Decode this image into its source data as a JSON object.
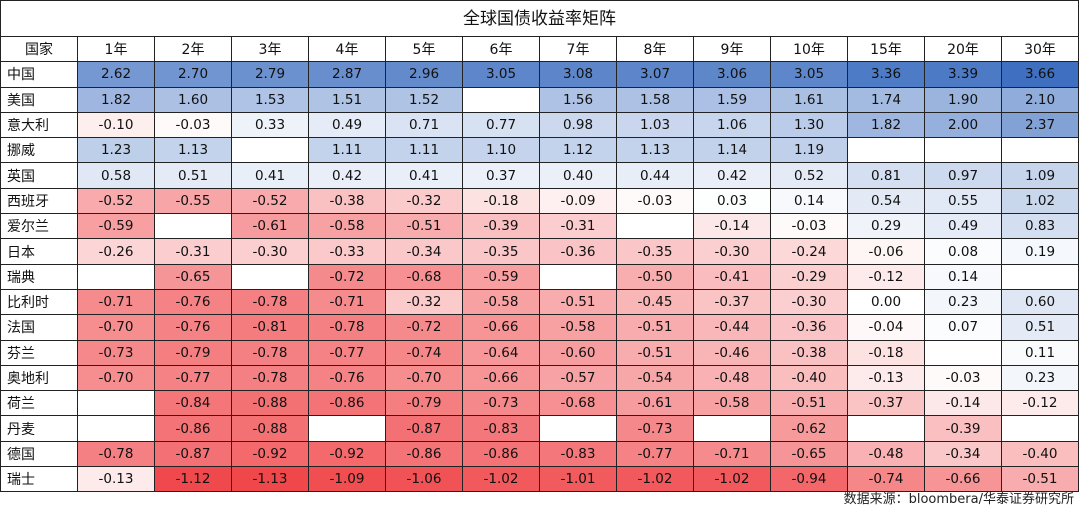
{
  "chart_data": {
    "type": "heatmap",
    "title": "全球国债收益率矩阵",
    "source": "数据来源：bloombera/华泰证券研究所",
    "corner_label": "国家",
    "columns": [
      "1年",
      "2年",
      "3年",
      "4年",
      "5年",
      "6年",
      "7年",
      "8年",
      "9年",
      "10年",
      "15年",
      "20年",
      "30年"
    ],
    "rows": [
      {
        "country": "中国",
        "values": [
          2.62,
          2.7,
          2.79,
          2.87,
          2.96,
          3.05,
          3.08,
          3.07,
          3.06,
          3.05,
          3.36,
          3.39,
          3.66
        ]
      },
      {
        "country": "美国",
        "values": [
          1.82,
          1.6,
          1.53,
          1.51,
          1.52,
          null,
          1.56,
          1.58,
          1.59,
          1.61,
          1.74,
          1.9,
          2.1
        ]
      },
      {
        "country": "意大利",
        "values": [
          -0.1,
          -0.03,
          0.33,
          0.49,
          0.71,
          0.77,
          0.98,
          1.03,
          1.06,
          1.3,
          1.82,
          2.0,
          2.37
        ]
      },
      {
        "country": "挪威",
        "values": [
          1.23,
          1.13,
          null,
          1.11,
          1.11,
          1.1,
          1.12,
          1.13,
          1.14,
          1.19,
          null,
          null,
          null
        ]
      },
      {
        "country": "英国",
        "values": [
          0.58,
          0.51,
          0.41,
          0.42,
          0.41,
          0.37,
          0.4,
          0.44,
          0.42,
          0.52,
          0.81,
          0.97,
          1.09
        ]
      },
      {
        "country": "西班牙",
        "values": [
          -0.52,
          -0.55,
          -0.52,
          -0.38,
          -0.32,
          -0.18,
          -0.09,
          -0.03,
          0.03,
          0.14,
          0.54,
          0.55,
          1.02
        ]
      },
      {
        "country": "爱尔兰",
        "values": [
          -0.59,
          null,
          -0.61,
          -0.58,
          -0.51,
          -0.39,
          -0.31,
          null,
          -0.14,
          -0.03,
          0.29,
          0.49,
          0.83
        ]
      },
      {
        "country": "日本",
        "values": [
          -0.26,
          -0.31,
          -0.3,
          -0.33,
          -0.34,
          -0.35,
          -0.36,
          -0.35,
          -0.3,
          -0.24,
          -0.06,
          0.08,
          0.19
        ]
      },
      {
        "country": "瑞典",
        "values": [
          null,
          -0.65,
          null,
          -0.72,
          -0.68,
          -0.59,
          null,
          -0.5,
          -0.41,
          -0.29,
          -0.12,
          0.14,
          null
        ]
      },
      {
        "country": "比利时",
        "values": [
          -0.71,
          -0.76,
          -0.78,
          -0.71,
          -0.32,
          -0.58,
          -0.51,
          -0.45,
          -0.37,
          -0.3,
          0.0,
          0.23,
          0.6
        ]
      },
      {
        "country": "法国",
        "values": [
          -0.7,
          -0.76,
          -0.81,
          -0.78,
          -0.72,
          -0.66,
          -0.58,
          -0.51,
          -0.44,
          -0.36,
          -0.04,
          0.07,
          0.51
        ]
      },
      {
        "country": "芬兰",
        "values": [
          -0.73,
          -0.79,
          -0.78,
          -0.77,
          -0.74,
          -0.64,
          -0.6,
          -0.51,
          -0.46,
          -0.38,
          -0.18,
          null,
          0.11
        ]
      },
      {
        "country": "奥地利",
        "values": [
          -0.7,
          -0.77,
          -0.78,
          -0.76,
          -0.7,
          -0.66,
          -0.57,
          -0.54,
          -0.48,
          -0.4,
          -0.13,
          -0.03,
          0.23
        ]
      },
      {
        "country": "荷兰",
        "values": [
          null,
          -0.84,
          -0.88,
          -0.86,
          -0.79,
          -0.73,
          -0.68,
          -0.61,
          -0.58,
          -0.51,
          -0.37,
          -0.14,
          -0.12
        ]
      },
      {
        "country": "丹麦",
        "values": [
          null,
          -0.86,
          -0.88,
          null,
          -0.87,
          -0.83,
          null,
          -0.73,
          null,
          -0.62,
          null,
          -0.39,
          null
        ]
      },
      {
        "country": "德国",
        "values": [
          -0.78,
          -0.87,
          -0.92,
          -0.92,
          -0.86,
          -0.86,
          -0.83,
          -0.77,
          -0.71,
          -0.65,
          -0.48,
          -0.34,
          -0.4
        ]
      },
      {
        "country": "瑞士",
        "values": [
          -0.13,
          -1.12,
          -1.13,
          -1.09,
          -1.06,
          -1.02,
          -1.01,
          -1.02,
          -1.02,
          -0.94,
          -0.74,
          -0.66,
          -0.51
        ]
      }
    ],
    "color_scale": {
      "negative": "#f0474b",
      "zero": "#ffffff",
      "positive": "#3e6fc0",
      "min": -1.13,
      "max": 3.66
    }
  }
}
